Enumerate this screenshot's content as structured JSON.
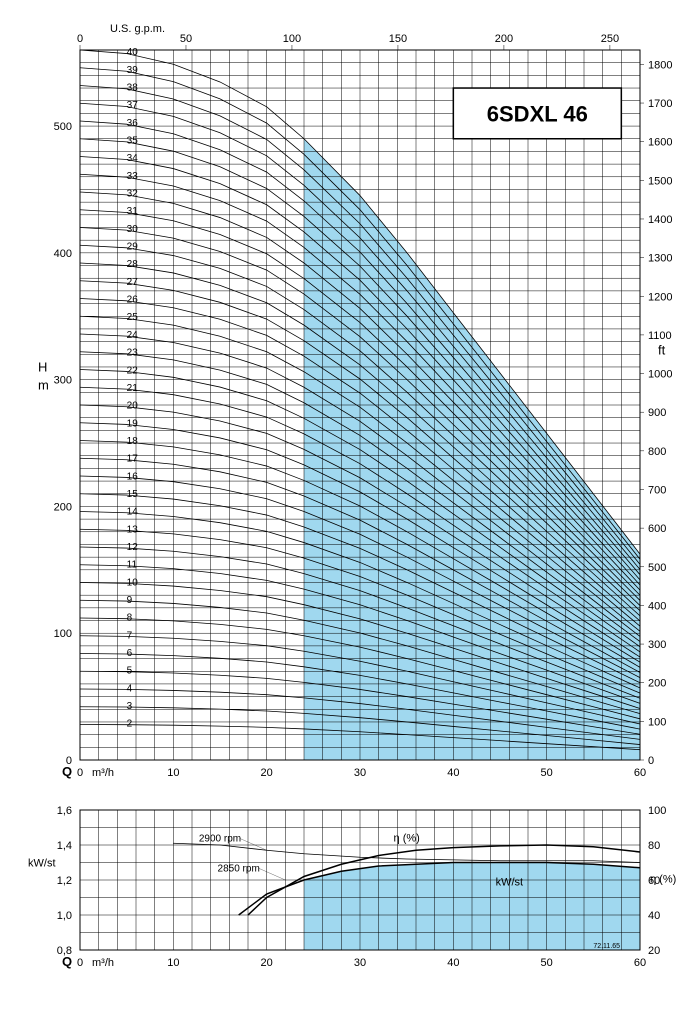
{
  "title": "6SDXL 46",
  "footnote": "72.11.65",
  "main_chart": {
    "type": "line",
    "background_color": "#ffffff",
    "shade_color": "#a0d8ef",
    "grid_color": "#000000",
    "curve_color": "#000000",
    "x_bottom": {
      "label": "Q m³/h",
      "min": 0,
      "max": 60,
      "major_step": 10,
      "minor_step": 2,
      "label_fontsize": 13
    },
    "x_top": {
      "label": "U.S. g.p.m.",
      "ticks": [
        0,
        50,
        100,
        150,
        200,
        250
      ],
      "tick_at_m3h_factor": 0.2271
    },
    "y_left": {
      "label": "H\nm",
      "min": 0,
      "max": 560,
      "major_step": 100,
      "minor_step": 10
    },
    "y_right": {
      "label": "ft",
      "min": 0,
      "max": 1800,
      "major_step": 100,
      "m_to_ft": 3.2808
    },
    "operating_region_x": [
      24,
      60
    ],
    "curves": [
      {
        "label": "2",
        "h0": 28,
        "factor": 1
      },
      {
        "label": "3",
        "h0": 42,
        "factor": 1
      },
      {
        "label": "4",
        "h0": 56,
        "factor": 1
      },
      {
        "label": "5",
        "h0": 70,
        "factor": 1
      },
      {
        "label": "6",
        "h0": 84,
        "factor": 1
      },
      {
        "label": "7",
        "h0": 98,
        "factor": 1
      },
      {
        "label": "8",
        "h0": 112,
        "factor": 1
      },
      {
        "label": "9",
        "h0": 126,
        "factor": 1
      },
      {
        "label": "10",
        "h0": 140,
        "factor": 1
      },
      {
        "label": "11",
        "h0": 154,
        "factor": 1
      },
      {
        "label": "12",
        "h0": 168,
        "factor": 1
      },
      {
        "label": "13",
        "h0": 182,
        "factor": 1
      },
      {
        "label": "14",
        "h0": 196,
        "factor": 1
      },
      {
        "label": "15",
        "h0": 210,
        "factor": 1
      },
      {
        "label": "16",
        "h0": 224,
        "factor": 1
      },
      {
        "label": "17",
        "h0": 238,
        "factor": 1
      },
      {
        "label": "18",
        "h0": 252,
        "factor": 1
      },
      {
        "label": "19",
        "h0": 266,
        "factor": 1
      },
      {
        "label": "20",
        "h0": 280,
        "factor": 1
      },
      {
        "label": "21",
        "h0": 294,
        "factor": 1
      },
      {
        "label": "22",
        "h0": 308,
        "factor": 1
      },
      {
        "label": "23",
        "h0": 322,
        "factor": 1
      },
      {
        "label": "24",
        "h0": 336,
        "factor": 1
      },
      {
        "label": "25",
        "h0": 350,
        "factor": 1
      },
      {
        "label": "26",
        "h0": 364,
        "factor": 1
      },
      {
        "label": "27",
        "h0": 378,
        "factor": 1
      },
      {
        "label": "28",
        "h0": 392,
        "factor": 1
      },
      {
        "label": "29",
        "h0": 406,
        "factor": 1
      },
      {
        "label": "30",
        "h0": 420,
        "factor": 1
      },
      {
        "label": "31",
        "h0": 434,
        "factor": 1
      },
      {
        "label": "32",
        "h0": 448,
        "factor": 1
      },
      {
        "label": "33",
        "h0": 462,
        "factor": 1
      },
      {
        "label": "34",
        "h0": 476,
        "factor": 1
      },
      {
        "label": "35",
        "h0": 490,
        "factor": 1
      },
      {
        "label": "36",
        "h0": 504,
        "factor": 1
      },
      {
        "label": "37",
        "h0": 518,
        "factor": 1
      },
      {
        "label": "38",
        "h0": 532,
        "factor": 1
      },
      {
        "label": "39",
        "h0": 546,
        "factor": 1
      },
      {
        "label": "40",
        "h0": 560,
        "factor": 1
      }
    ],
    "curve_shape_norm": [
      [
        0,
        1.0
      ],
      [
        5,
        0.995
      ],
      [
        10,
        0.98
      ],
      [
        15,
        0.955
      ],
      [
        20,
        0.92
      ],
      [
        24,
        0.875
      ],
      [
        30,
        0.795
      ],
      [
        35,
        0.715
      ],
      [
        40,
        0.63
      ],
      [
        45,
        0.545
      ],
      [
        50,
        0.46
      ],
      [
        55,
        0.375
      ],
      [
        60,
        0.29
      ]
    ]
  },
  "sub_chart": {
    "type": "line",
    "shade_color": "#a0d8ef",
    "x_bottom": {
      "label": "Q m³/h",
      "min": 0,
      "max": 60,
      "major_step": 10,
      "minor_step": 2
    },
    "y_left": {
      "label": "kW/st",
      "min": 0.8,
      "max": 1.6,
      "major_step": 0.2,
      "minor_step": 0.1
    },
    "y_right": {
      "label": "η (%)",
      "min": 20,
      "max": 100,
      "major_step": 20
    },
    "operating_region_x": [
      24,
      60
    ],
    "rpm_labels": [
      {
        "text": "2900 rpm",
        "x": 15,
        "y_kw": 1.42
      },
      {
        "text": "2850 rpm",
        "x": 17,
        "y_kw": 1.25
      }
    ],
    "inline_labels": [
      {
        "text": "η  (%)",
        "x": 35,
        "y_kw": 1.42
      },
      {
        "text": "kW/st",
        "x": 46,
        "y_kw": 1.17
      }
    ],
    "efficiency_curve": [
      [
        18,
        40
      ],
      [
        20,
        50
      ],
      [
        24,
        62
      ],
      [
        28,
        69
      ],
      [
        32,
        74
      ],
      [
        36,
        77
      ],
      [
        40,
        78.5
      ],
      [
        45,
        79.5
      ],
      [
        50,
        80
      ],
      [
        55,
        79
      ],
      [
        60,
        76
      ]
    ],
    "kw_curve_2900": [
      [
        10,
        1.41
      ],
      [
        15,
        1.4
      ],
      [
        20,
        1.37
      ],
      [
        24,
        1.35
      ],
      [
        30,
        1.33
      ],
      [
        35,
        1.32
      ],
      [
        40,
        1.315
      ],
      [
        45,
        1.31
      ],
      [
        50,
        1.31
      ],
      [
        55,
        1.31
      ],
      [
        60,
        1.3
      ]
    ],
    "kw_curve_2850": [
      [
        17,
        1.0
      ],
      [
        20,
        1.12
      ],
      [
        24,
        1.2
      ],
      [
        28,
        1.25
      ],
      [
        32,
        1.28
      ],
      [
        36,
        1.29
      ],
      [
        40,
        1.3
      ],
      [
        45,
        1.3
      ],
      [
        50,
        1.3
      ],
      [
        55,
        1.29
      ],
      [
        60,
        1.27
      ]
    ]
  }
}
